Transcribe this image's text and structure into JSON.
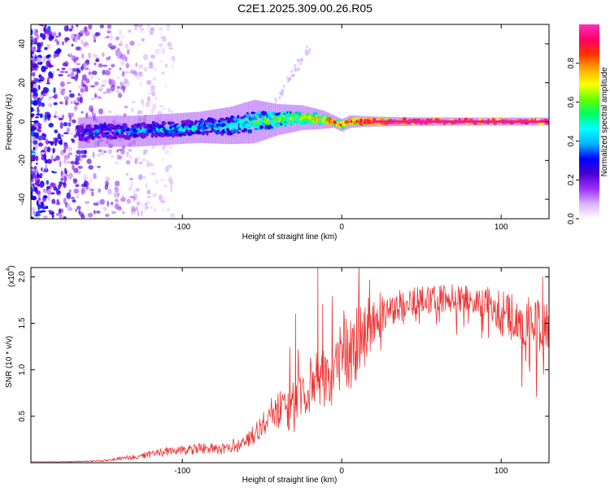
{
  "title": "C2E1.2025.309.00.26.R05",
  "chart_data": [
    {
      "type": "heatmap",
      "id": "spectrogram",
      "xlabel": "Height of straight line (km)",
      "ylabel": "Frequency (Hz)",
      "xlim": [
        -195,
        130
      ],
      "ylim": [
        -50,
        50
      ],
      "x_ticks": [
        -100,
        0,
        100
      ],
      "y_ticks": [
        -40,
        -20,
        0,
        20,
        40
      ],
      "colorbar": {
        "label": "Normalized spectral amplitude",
        "range": [
          0,
          1
        ],
        "ticks": [
          0.0,
          0.2,
          0.4,
          0.6,
          0.8
        ],
        "tick_labels": [
          "0.0",
          "0.2",
          "0.4",
          "0.6",
          "0.8"
        ],
        "colors": [
          "#ffffff",
          "#d9b3ff",
          "#9b30ff",
          "#4b00d0",
          "#0000ff",
          "#00b4ff",
          "#00ffff",
          "#00ff66",
          "#66ff00",
          "#ffff00",
          "#ffaa00",
          "#ff3300",
          "#ff0066",
          "#ff30c0"
        ]
      },
      "ridge": {
        "x": [
          -165,
          -150,
          -130,
          -110,
          -90,
          -70,
          -55,
          -40,
          -25,
          -12,
          -5,
          0,
          5,
          20,
          40,
          80,
          100,
          130
        ],
        "freq": [
          -6,
          -5,
          -5,
          -4,
          -3,
          -2,
          0,
          1,
          2,
          1,
          0,
          -2,
          0,
          0,
          0,
          0,
          0,
          0
        ],
        "amplitude": [
          0.3,
          0.35,
          0.35,
          0.4,
          0.42,
          0.45,
          0.5,
          0.6,
          0.65,
          0.75,
          0.85,
          0.8,
          0.9,
          0.95,
          1.0,
          1.0,
          1.0,
          1.0
        ],
        "spread_hz": [
          5,
          5,
          5,
          5,
          5,
          6,
          7,
          5,
          4,
          3,
          2,
          2,
          2,
          1.6,
          1.4,
          1.3,
          1.3,
          1.3
        ]
      },
      "noise_region_x": [
        -195,
        -150
      ]
    },
    {
      "type": "line",
      "id": "snr",
      "xlabel": "Height of straight line (km)",
      "ylabel": "SNR (10 * v/v)",
      "scale_label": "(x10",
      "scale_exponent": "4",
      "xlim": [
        -195,
        130
      ],
      "ylim": [
        0,
        2.1
      ],
      "x_ticks": [
        -100,
        0,
        100
      ],
      "y_ticks": [
        0.5,
        1.0,
        1.5,
        2.0
      ],
      "y_tick_labels": [
        "0.5",
        "1.0",
        "1.5",
        "2.0"
      ],
      "series": [
        {
          "name": "SNR",
          "color": "#ee3333",
          "x": [
            -195,
            -170,
            -150,
            -130,
            -110,
            -90,
            -75,
            -60,
            -50,
            -40,
            -30,
            -20,
            -10,
            0,
            10,
            20,
            30,
            40,
            50,
            60,
            70,
            80,
            90,
            100,
            110,
            120,
            130
          ],
          "y": [
            0.01,
            0.01,
            0.02,
            0.06,
            0.12,
            0.15,
            0.15,
            0.22,
            0.4,
            0.55,
            0.6,
            0.85,
            0.9,
            1.1,
            1.3,
            1.55,
            1.65,
            1.72,
            1.75,
            1.76,
            1.77,
            1.77,
            1.7,
            1.6,
            1.55,
            1.5,
            1.45
          ],
          "noise_amplitude": [
            0.0,
            0.005,
            0.01,
            0.03,
            0.05,
            0.06,
            0.06,
            0.09,
            0.13,
            0.2,
            0.28,
            0.3,
            0.35,
            0.4,
            0.45,
            0.3,
            0.18,
            0.15,
            0.15,
            0.15,
            0.15,
            0.15,
            0.2,
            0.25,
            0.25,
            0.28,
            0.3
          ],
          "spikes": [
            {
              "x": -15,
              "y": 2.1
            },
            {
              "x": -29,
              "y": 1.6
            },
            {
              "x": -12,
              "y": 1.7
            },
            {
              "x": 126,
              "y": 2.0
            }
          ]
        }
      ]
    }
  ]
}
